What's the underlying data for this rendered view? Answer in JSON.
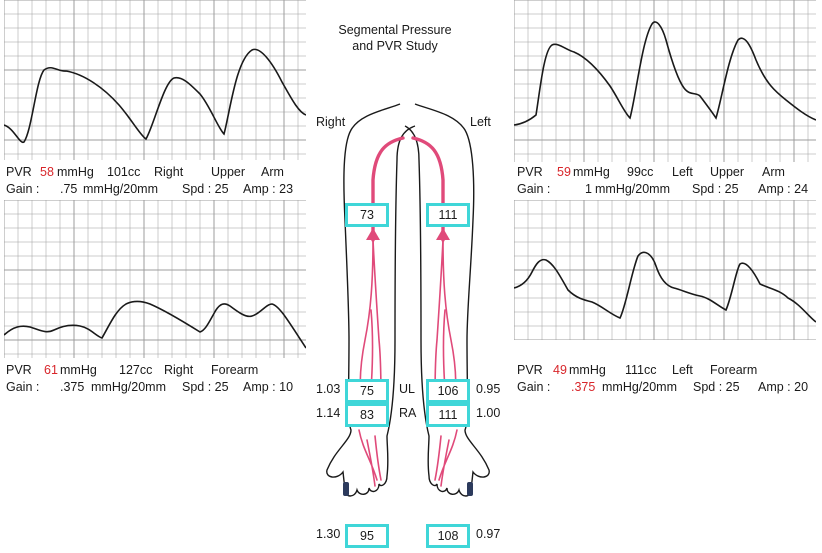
{
  "title": {
    "line1": "Segmental Pressure",
    "line2": "and PVR Study"
  },
  "sides": {
    "right": "Right",
    "left": "Left"
  },
  "panels": {
    "right_upper": {
      "pvr_label": "PVR",
      "pvr_value": "58",
      "pvr_unit": "mmHg",
      "volume": "101cc",
      "side": "Right",
      "site1": "Upper",
      "site2": "Arm",
      "gain_label": "Gain :",
      "gain_value": ".75",
      "gain_unit": "mmHg/20mm",
      "spd": "Spd : 25",
      "amp": "Amp : 23"
    },
    "right_forearm": {
      "pvr_label": "PVR",
      "pvr_value": "61",
      "pvr_unit": "mmHg",
      "volume": "127cc",
      "side": "Right",
      "site1": "Forearm",
      "gain_label": "Gain :",
      "gain_value": ".375",
      "gain_unit": "mmHg/20mm",
      "spd": "Spd : 25",
      "amp": "Amp : 10"
    },
    "left_upper": {
      "pvr_label": "PVR",
      "pvr_value": "59",
      "pvr_unit": "mmHg",
      "volume": "99cc",
      "side": "Left",
      "site1": "Upper",
      "site2": "Arm",
      "gain_label": "Gain :",
      "gain_value": "1",
      "gain_unit": "mmHg/20mm",
      "spd": "Spd : 25",
      "amp": "Amp : 24"
    },
    "left_forearm": {
      "pvr_label": "PVR",
      "pvr_value": "49",
      "pvr_unit": "mmHg",
      "volume": "111cc",
      "side": "Left",
      "site1": "Forearm",
      "gain_label": "Gain :",
      "gain_value": ".375",
      "gain_unit": "mmHg/20mm",
      "spd": "Spd : 25",
      "amp": "Amp : 20"
    }
  },
  "pressures": {
    "brachial_right": "73",
    "brachial_left": "111",
    "ul_right": "75",
    "ul_left": "106",
    "ra_right": "83",
    "ra_left": "111",
    "wrist_right": "95",
    "wrist_left": "108"
  },
  "ratios": {
    "ul_right": "1.03",
    "ul_left": "0.95",
    "ra_right": "1.14",
    "ra_left": "1.00",
    "wrist_right": "1.30",
    "wrist_left": "0.97"
  },
  "segments": {
    "ul": "UL",
    "ra": "RA"
  },
  "colors": {
    "grid": "#9c9c9c",
    "trace": "#1a1a1a",
    "artery": "#e04a7a",
    "box": "#3fd6d8",
    "highlight": "#d8262b"
  }
}
